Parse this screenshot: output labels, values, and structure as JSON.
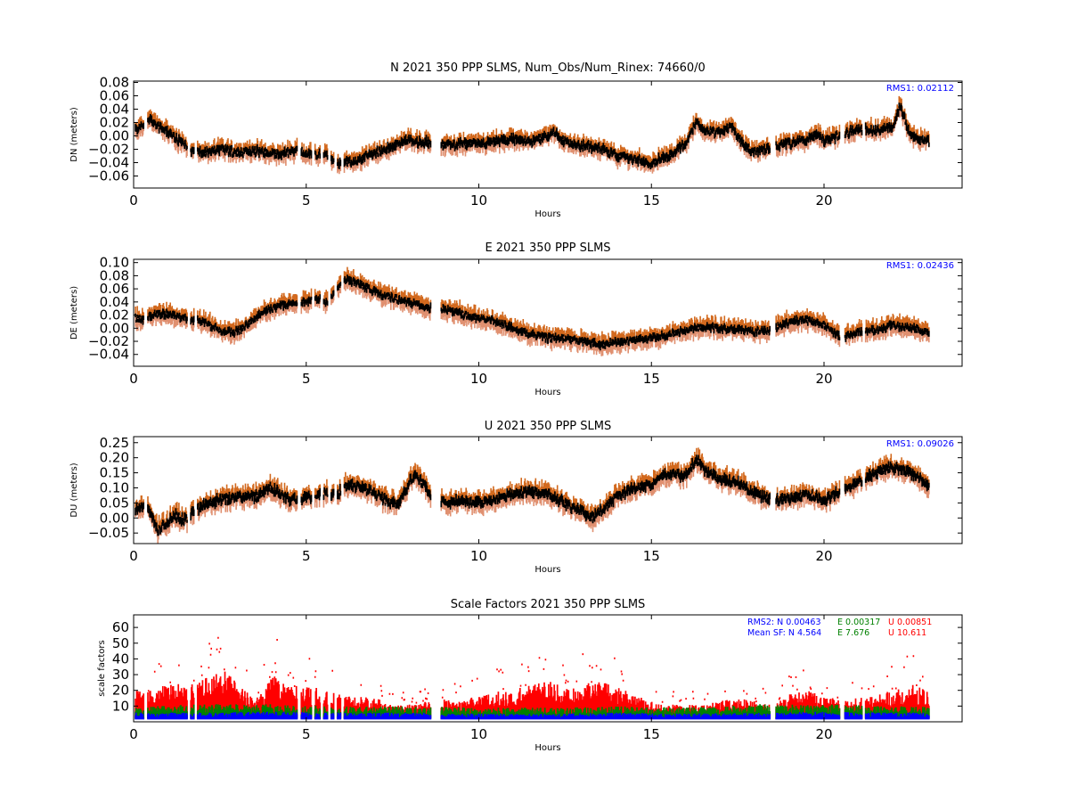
{
  "chart_data": [
    {
      "type": "scatter",
      "title": "N 2021 350 PPP  SLMS, Num_Obs/Num_Rinex: 74660/0",
      "xlabel": "Hours",
      "ylabel": "DN (meters)",
      "xlim": [
        0,
        24
      ],
      "ylim": [
        -0.078,
        0.082
      ],
      "xticks": [
        "0",
        "5",
        "10",
        "15",
        "20"
      ],
      "yticks": [
        "0.08",
        "0.06",
        "0.04",
        "0.02",
        "0.00",
        "−0.02",
        "−0.04",
        "−0.06"
      ],
      "annotations": [
        {
          "text": "RMS1:  0.02112",
          "color": "#0000ff"
        }
      ],
      "series": [
        {
          "role": "error-band",
          "color_upper": "#d2691e",
          "color_lower": "#e09070",
          "band_half_width": 0.012
        },
        {
          "role": "position",
          "color": "#000000",
          "x": [
            0.1,
            0.25,
            0.5,
            0.75,
            1.0,
            1.25,
            1.5,
            1.7,
            2.0,
            2.5,
            3.0,
            3.5,
            4.0,
            4.5,
            4.8,
            5.0,
            5.3,
            5.5,
            5.9,
            6.0,
            6.3,
            6.8,
            7.2,
            7.6,
            8.0,
            8.3,
            8.5,
            9.0,
            9.5,
            10.0,
            10.5,
            11.0,
            11.5,
            12.0,
            12.2,
            12.5,
            13.0,
            13.5,
            14.0,
            14.5,
            15.0,
            15.5,
            16.0,
            16.3,
            16.5,
            17.0,
            17.3,
            17.6,
            18.0,
            18.4,
            18.7,
            19.0,
            19.5,
            19.8,
            20.0,
            20.5,
            21.0,
            21.5,
            22.0,
            22.2,
            22.5,
            23.0
          ],
          "y": [
            0.01,
            0.015,
            0.025,
            0.012,
            0.005,
            -0.005,
            -0.015,
            -0.022,
            -0.025,
            -0.02,
            -0.025,
            -0.022,
            -0.028,
            -0.025,
            -0.02,
            -0.025,
            -0.03,
            -0.025,
            -0.045,
            -0.04,
            -0.038,
            -0.03,
            -0.022,
            -0.015,
            -0.005,
            -0.01,
            -0.008,
            -0.015,
            -0.012,
            -0.012,
            -0.008,
            -0.005,
            -0.008,
            -0.002,
            0.005,
            -0.01,
            -0.015,
            -0.018,
            -0.03,
            -0.035,
            -0.04,
            -0.03,
            -0.012,
            0.02,
            0.01,
            0.005,
            0.015,
            -0.01,
            -0.025,
            -0.02,
            -0.015,
            -0.012,
            -0.005,
            0.005,
            -0.008,
            0.002,
            0.01,
            0.008,
            0.015,
            0.045,
            0.0,
            -0.008
          ]
        }
      ]
    },
    {
      "type": "scatter",
      "title": "E 2021 350 PPP  SLMS",
      "xlabel": "Hours",
      "ylabel": "DE (meters)",
      "xlim": [
        0,
        24
      ],
      "ylim": [
        -0.058,
        0.105
      ],
      "xticks": [
        "0",
        "5",
        "10",
        "15",
        "20"
      ],
      "yticks": [
        "0.10",
        "0.08",
        "0.06",
        "0.04",
        "0.02",
        "0.00",
        "−0.02",
        "−0.04"
      ],
      "annotations": [
        {
          "text": "RMS1:  0.02436",
          "color": "#0000ff"
        }
      ],
      "series": [
        {
          "role": "error-band",
          "color_upper": "#d2691e",
          "color_lower": "#e09070",
          "band_half_width": 0.013
        },
        {
          "role": "position",
          "color": "#000000",
          "x": [
            0.1,
            0.3,
            0.5,
            0.8,
            1.2,
            1.6,
            2.0,
            2.3,
            2.6,
            3.0,
            3.3,
            3.6,
            4.0,
            4.3,
            4.6,
            5.0,
            5.3,
            5.6,
            5.9,
            6.1,
            6.4,
            6.8,
            7.2,
            7.6,
            8.0,
            8.3,
            8.6,
            9.0,
            9.5,
            10.0,
            10.5,
            11.0,
            11.5,
            12.0,
            12.5,
            13.0,
            13.5,
            14.0,
            14.5,
            15.0,
            15.5,
            16.0,
            16.5,
            17.0,
            17.5,
            18.0,
            18.5,
            19.0,
            19.5,
            20.0,
            20.5,
            21.0,
            21.5,
            22.0,
            22.5,
            23.0
          ],
          "y": [
            0.015,
            0.012,
            0.02,
            0.022,
            0.02,
            0.015,
            0.01,
            0.002,
            -0.005,
            -0.005,
            0.005,
            0.02,
            0.03,
            0.035,
            0.04,
            0.04,
            0.045,
            0.04,
            0.06,
            0.075,
            0.07,
            0.06,
            0.05,
            0.045,
            0.04,
            0.035,
            0.03,
            0.03,
            0.022,
            0.015,
            0.01,
            0.0,
            -0.01,
            -0.015,
            -0.015,
            -0.02,
            -0.025,
            -0.022,
            -0.018,
            -0.015,
            -0.01,
            -0.002,
            0.002,
            0.0,
            -0.002,
            -0.005,
            -0.002,
            0.01,
            0.012,
            0.005,
            -0.015,
            -0.005,
            -0.003,
            0.005,
            0.0,
            -0.005
          ]
        }
      ]
    },
    {
      "type": "scatter",
      "title": "U 2021 350 PPP  SLMS",
      "xlabel": "Hours",
      "ylabel": "DU (meters)",
      "xlim": [
        0,
        24
      ],
      "ylim": [
        -0.085,
        0.27
      ],
      "xticks": [
        "0",
        "5",
        "10",
        "15",
        "20"
      ],
      "yticks": [
        "0.25",
        "0.20",
        "0.15",
        "0.10",
        "0.05",
        "0.00",
        "−0.05"
      ],
      "annotations": [
        {
          "text": "RMS1:  0.09026",
          "color": "#0000ff"
        }
      ],
      "series": [
        {
          "role": "error-band",
          "color_upper": "#d2691e",
          "color_lower": "#e09070",
          "band_half_width": 0.03
        },
        {
          "role": "position",
          "color": "#000000",
          "x": [
            0.1,
            0.3,
            0.5,
            0.7,
            0.9,
            1.2,
            1.5,
            1.7,
            2.0,
            2.5,
            3.0,
            3.5,
            4.0,
            4.5,
            5.0,
            5.5,
            5.9,
            6.2,
            6.6,
            7.0,
            7.4,
            7.7,
            8.0,
            8.2,
            8.6,
            9.0,
            9.5,
            10.0,
            10.5,
            11.0,
            11.5,
            12.0,
            12.5,
            13.0,
            13.3,
            13.7,
            14.0,
            14.5,
            15.0,
            15.3,
            15.6,
            16.0,
            16.3,
            16.6,
            17.0,
            17.5,
            18.0,
            18.5,
            19.0,
            19.5,
            20.0,
            20.5,
            21.0,
            21.5,
            22.0,
            22.5,
            23.0
          ],
          "y": [
            0.03,
            0.04,
            0.01,
            -0.04,
            -0.02,
            0.01,
            -0.01,
            0.02,
            0.04,
            0.06,
            0.07,
            0.07,
            0.1,
            0.06,
            0.07,
            0.08,
            0.08,
            0.11,
            0.1,
            0.08,
            0.05,
            0.05,
            0.12,
            0.14,
            0.08,
            0.05,
            0.06,
            0.05,
            0.06,
            0.08,
            0.09,
            0.08,
            0.05,
            0.02,
            0.0,
            0.04,
            0.07,
            0.1,
            0.11,
            0.14,
            0.15,
            0.14,
            0.2,
            0.15,
            0.13,
            0.12,
            0.08,
            0.06,
            0.06,
            0.08,
            0.06,
            0.09,
            0.12,
            0.15,
            0.17,
            0.15,
            0.11
          ]
        }
      ]
    },
    {
      "type": "scatter",
      "title": "Scale Factors 2021 350 PPP  SLMS",
      "xlabel": "Hours",
      "ylabel": "scale factors",
      "xlim": [
        0,
        24
      ],
      "ylim": [
        0,
        68
      ],
      "xticks": [
        "0",
        "5",
        "10",
        "15",
        "20"
      ],
      "yticks": [
        "60",
        "50",
        "40",
        "30",
        "20",
        "10"
      ],
      "annotations": [
        {
          "text": "RMS2: N  0.00463",
          "color": "#0000ff"
        },
        {
          "text": "E  0.00317",
          "color": "#008000"
        },
        {
          "text": "U  0.00851",
          "color": "#ff0000"
        },
        {
          "text": "Mean SF: N   4.564",
          "color": "#0000ff"
        },
        {
          "text": "E   7.676",
          "color": "#008000"
        },
        {
          "text": "U   10.611",
          "color": "#ff0000"
        }
      ],
      "series": [
        {
          "role": "U scale factor",
          "color": "#ff0000",
          "x": [
            0.5,
            1.0,
            1.5,
            2.2,
            2.6,
            3.0,
            3.5,
            4.1,
            4.5,
            5.0,
            5.5,
            6.0,
            6.5,
            7.0,
            7.5,
            8.0,
            8.5,
            9.0,
            9.5,
            10.0,
            10.5,
            11.0,
            11.5,
            12.0,
            12.5,
            13.0,
            13.5,
            14.0,
            14.5,
            15.0,
            15.5,
            16.0,
            16.5,
            17.0,
            17.5,
            18.0,
            18.5,
            19.0,
            19.5,
            20.0,
            20.5,
            21.0,
            21.5,
            22.0,
            22.5,
            23.0
          ],
          "y": [
            18,
            22,
            22,
            26,
            30,
            24,
            12,
            28,
            20,
            22,
            18,
            16,
            15,
            14,
            10,
            10,
            12,
            13,
            12,
            15,
            18,
            18,
            22,
            24,
            20,
            22,
            24,
            20,
            16,
            12,
            10,
            10,
            10,
            12,
            14,
            12,
            10,
            16,
            18,
            16,
            12,
            14,
            16,
            18,
            22,
            18
          ]
        },
        {
          "role": "E scale factor",
          "color": "#008000",
          "x": [
            0.5,
            2.0,
            4.0,
            6.0,
            8.0,
            10.0,
            12.0,
            14.0,
            16.0,
            18.0,
            20.0,
            22.0,
            23.0
          ],
          "y": [
            7,
            8,
            8,
            7,
            7,
            6.5,
            6.5,
            7,
            6.5,
            8,
            8,
            7,
            7
          ]
        },
        {
          "role": "N scale factor",
          "color": "#0000ff",
          "x": [
            0.5,
            2.0,
            4.0,
            6.0,
            8.0,
            10.0,
            12.0,
            14.0,
            16.0,
            18.0,
            20.0,
            22.0,
            23.0
          ],
          "y": [
            4.5,
            4.5,
            5,
            4.5,
            4.5,
            4,
            4,
            4.5,
            4,
            4.5,
            5,
            4.5,
            4.5
          ]
        }
      ]
    }
  ]
}
